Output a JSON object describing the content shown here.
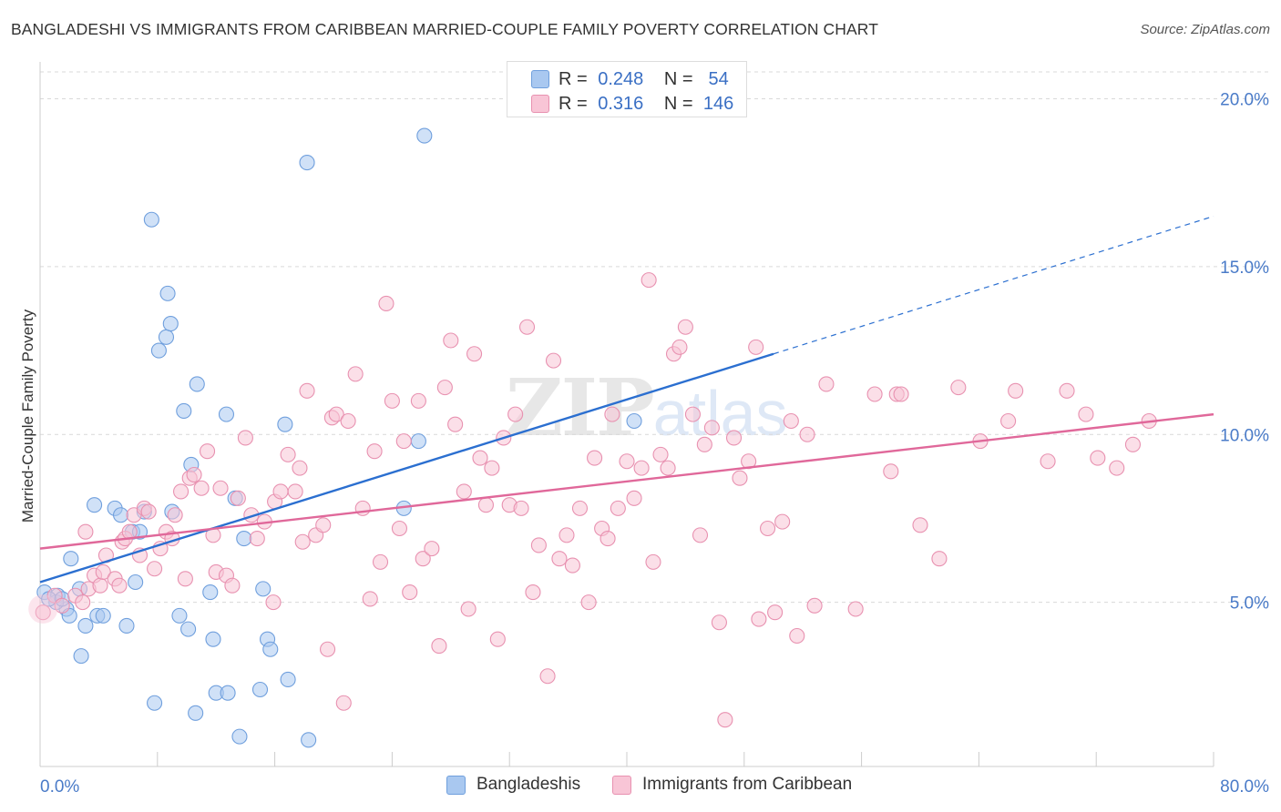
{
  "title": "BANGLADESHI VS IMMIGRANTS FROM CARIBBEAN MARRIED-COUPLE FAMILY POVERTY CORRELATION CHART",
  "source": "Source: ZipAtlas.com",
  "watermark": {
    "main": "ZIP",
    "sub": "atlas"
  },
  "legend_top": {
    "rows": [
      {
        "r_label": "R =",
        "r_value": "0.248",
        "n_label": "N =",
        "n_value": "54",
        "color": "#a9c8f0",
        "border": "#6f9fdd"
      },
      {
        "r_label": "R =",
        "r_value": "0.316",
        "n_label": "N =",
        "n_value": "146",
        "color": "#f8c5d6",
        "border": "#e891b0"
      }
    ]
  },
  "legend_bottom": [
    {
      "label": "Bangladeshis",
      "color": "#a9c8f0",
      "border": "#6f9fdd"
    },
    {
      "label": "Immigrants from Caribbean",
      "color": "#f8c5d6",
      "border": "#e891b0"
    }
  ],
  "chart_data": {
    "type": "scatter",
    "title": "BANGLADESHI VS IMMIGRANTS FROM CARIBBEAN MARRIED-COUPLE FAMILY POVERTY CORRELATION CHART",
    "xlabel": "",
    "ylabel": "Married-Couple Family Poverty",
    "xlim": [
      0,
      80
    ],
    "ylim": [
      0,
      20.8
    ],
    "x_tick_labels": [
      "0.0%",
      "80.0%"
    ],
    "y_ticks": [
      5,
      10,
      15,
      20
    ],
    "y_tick_labels": [
      "5.0%",
      "10.0%",
      "15.0%",
      "20.0%"
    ],
    "grid": "horizontal dashed",
    "legend_position": "top-center",
    "series": [
      {
        "name": "Bangladeshis",
        "color": "#6f9fdd",
        "fill": "#a9c8f0",
        "trend": {
          "x": [
            0,
            50
          ],
          "y": [
            5.6,
            12.4
          ],
          "dashed_extension": {
            "x": [
              50,
              80
            ],
            "y": [
              12.4,
              16.5
            ]
          },
          "color": "#2b6fd0"
        },
        "points": [
          [
            0.3,
            5.3
          ],
          [
            1.2,
            5.2
          ],
          [
            1.8,
            4.8
          ],
          [
            2.0,
            4.6
          ],
          [
            1.1,
            5.0
          ],
          [
            2.1,
            6.3
          ],
          [
            2.7,
            5.4
          ],
          [
            2.8,
            3.4
          ],
          [
            3.1,
            4.3
          ],
          [
            3.7,
            7.9
          ],
          [
            3.9,
            4.6
          ],
          [
            4.3,
            4.6
          ],
          [
            5.1,
            7.8
          ],
          [
            5.5,
            7.6
          ],
          [
            5.9,
            4.3
          ],
          [
            6.3,
            7.1
          ],
          [
            6.5,
            5.6
          ],
          [
            6.8,
            7.1
          ],
          [
            7.1,
            7.7
          ],
          [
            7.6,
            16.4
          ],
          [
            8.1,
            12.5
          ],
          [
            7.8,
            2.0
          ],
          [
            8.6,
            12.9
          ],
          [
            8.7,
            14.2
          ],
          [
            8.9,
            13.3
          ],
          [
            9.0,
            7.7
          ],
          [
            9.5,
            4.6
          ],
          [
            9.8,
            10.7
          ],
          [
            10.1,
            4.2
          ],
          [
            10.3,
            9.1
          ],
          [
            10.7,
            11.5
          ],
          [
            10.6,
            1.7
          ],
          [
            11.6,
            5.3
          ],
          [
            11.8,
            3.9
          ],
          [
            12.0,
            2.3
          ],
          [
            12.7,
            10.6
          ],
          [
            12.8,
            2.3
          ],
          [
            13.3,
            8.1
          ],
          [
            13.6,
            1.0
          ],
          [
            13.9,
            6.9
          ],
          [
            15.0,
            2.4
          ],
          [
            15.2,
            5.4
          ],
          [
            15.5,
            3.9
          ],
          [
            15.7,
            3.6
          ],
          [
            16.7,
            10.3
          ],
          [
            16.9,
            2.7
          ],
          [
            18.2,
            18.1
          ],
          [
            18.3,
            0.9
          ],
          [
            24.8,
            7.8
          ],
          [
            25.8,
            9.8
          ],
          [
            26.2,
            18.9
          ],
          [
            40.5,
            10.4
          ],
          [
            0.6,
            5.1
          ],
          [
            1.5,
            5.1
          ]
        ]
      },
      {
        "name": "Immigrants from Caribbean",
        "color": "#e891b0",
        "fill": "#f8c5d6",
        "trend": {
          "x": [
            0,
            80
          ],
          "y": [
            6.6,
            10.6
          ],
          "color": "#e0689a"
        },
        "points": [
          [
            0.2,
            4.7
          ],
          [
            1.0,
            5.2
          ],
          [
            1.5,
            4.9
          ],
          [
            2.4,
            5.2
          ],
          [
            2.9,
            5.0
          ],
          [
            3.1,
            7.1
          ],
          [
            3.3,
            5.4
          ],
          [
            3.7,
            5.8
          ],
          [
            4.1,
            5.5
          ],
          [
            4.3,
            5.9
          ],
          [
            4.5,
            6.4
          ],
          [
            5.1,
            5.7
          ],
          [
            5.4,
            5.5
          ],
          [
            5.6,
            6.8
          ],
          [
            5.8,
            6.9
          ],
          [
            6.1,
            7.1
          ],
          [
            6.4,
            7.6
          ],
          [
            6.8,
            6.4
          ],
          [
            7.1,
            7.8
          ],
          [
            7.4,
            7.7
          ],
          [
            7.8,
            6.0
          ],
          [
            8.2,
            6.6
          ],
          [
            8.6,
            7.1
          ],
          [
            9.0,
            6.9
          ],
          [
            9.2,
            7.6
          ],
          [
            9.6,
            8.3
          ],
          [
            9.9,
            5.7
          ],
          [
            10.2,
            8.7
          ],
          [
            10.5,
            8.8
          ],
          [
            11.0,
            8.4
          ],
          [
            11.4,
            9.5
          ],
          [
            11.8,
            7.0
          ],
          [
            12.0,
            5.9
          ],
          [
            12.3,
            8.4
          ],
          [
            12.7,
            5.8
          ],
          [
            13.1,
            5.5
          ],
          [
            13.5,
            8.1
          ],
          [
            14.0,
            9.9
          ],
          [
            14.4,
            7.6
          ],
          [
            14.8,
            6.9
          ],
          [
            15.3,
            7.4
          ],
          [
            15.9,
            5.0
          ],
          [
            16.0,
            8.0
          ],
          [
            16.4,
            8.3
          ],
          [
            16.9,
            9.4
          ],
          [
            17.4,
            8.3
          ],
          [
            17.7,
            9.0
          ],
          [
            17.9,
            6.8
          ],
          [
            18.2,
            11.3
          ],
          [
            18.8,
            7.0
          ],
          [
            19.3,
            7.3
          ],
          [
            19.6,
            3.6
          ],
          [
            19.9,
            10.5
          ],
          [
            20.2,
            10.6
          ],
          [
            20.7,
            2.0
          ],
          [
            21.0,
            10.4
          ],
          [
            21.5,
            11.8
          ],
          [
            22.0,
            7.8
          ],
          [
            22.5,
            5.1
          ],
          [
            22.8,
            9.5
          ],
          [
            23.2,
            6.2
          ],
          [
            23.6,
            13.9
          ],
          [
            24.0,
            11.0
          ],
          [
            24.5,
            7.2
          ],
          [
            24.8,
            9.8
          ],
          [
            25.2,
            5.3
          ],
          [
            25.8,
            11.0
          ],
          [
            26.1,
            6.3
          ],
          [
            26.7,
            6.6
          ],
          [
            27.2,
            3.7
          ],
          [
            27.6,
            11.4
          ],
          [
            28.0,
            12.8
          ],
          [
            28.3,
            10.3
          ],
          [
            28.9,
            8.3
          ],
          [
            29.2,
            4.8
          ],
          [
            29.6,
            12.4
          ],
          [
            30.0,
            9.3
          ],
          [
            30.4,
            7.9
          ],
          [
            30.8,
            9.0
          ],
          [
            31.2,
            3.9
          ],
          [
            31.6,
            9.9
          ],
          [
            32.0,
            7.9
          ],
          [
            32.4,
            10.6
          ],
          [
            32.8,
            7.8
          ],
          [
            33.2,
            13.2
          ],
          [
            33.6,
            5.3
          ],
          [
            34.0,
            6.7
          ],
          [
            34.6,
            2.8
          ],
          [
            35.0,
            12.2
          ],
          [
            35.4,
            6.3
          ],
          [
            35.9,
            7.0
          ],
          [
            36.3,
            6.1
          ],
          [
            36.8,
            7.8
          ],
          [
            37.4,
            5.0
          ],
          [
            37.8,
            9.3
          ],
          [
            38.3,
            7.2
          ],
          [
            38.7,
            6.9
          ],
          [
            39.0,
            10.6
          ],
          [
            39.4,
            7.8
          ],
          [
            40.0,
            9.2
          ],
          [
            40.5,
            8.1
          ],
          [
            41.0,
            9.0
          ],
          [
            41.5,
            14.6
          ],
          [
            41.8,
            6.2
          ],
          [
            42.3,
            9.4
          ],
          [
            42.8,
            9.0
          ],
          [
            43.2,
            12.4
          ],
          [
            43.6,
            12.6
          ],
          [
            44.0,
            13.2
          ],
          [
            44.5,
            10.6
          ],
          [
            45.0,
            7.0
          ],
          [
            45.3,
            9.7
          ],
          [
            45.8,
            10.2
          ],
          [
            46.3,
            4.4
          ],
          [
            46.7,
            1.5
          ],
          [
            47.3,
            9.9
          ],
          [
            47.7,
            8.7
          ],
          [
            48.3,
            9.2
          ],
          [
            48.8,
            12.6
          ],
          [
            49.0,
            4.5
          ],
          [
            49.6,
            7.2
          ],
          [
            50.1,
            4.7
          ],
          [
            50.6,
            7.4
          ],
          [
            51.2,
            10.4
          ],
          [
            51.6,
            4.0
          ],
          [
            52.3,
            10.0
          ],
          [
            52.8,
            4.9
          ],
          [
            53.6,
            11.5
          ],
          [
            55.6,
            4.8
          ],
          [
            56.9,
            11.2
          ],
          [
            58.0,
            8.9
          ],
          [
            58.4,
            11.2
          ],
          [
            58.7,
            11.2
          ],
          [
            60.0,
            7.3
          ],
          [
            61.3,
            6.3
          ],
          [
            62.6,
            11.4
          ],
          [
            64.1,
            9.8
          ],
          [
            66.0,
            10.4
          ],
          [
            66.5,
            11.3
          ],
          [
            68.7,
            9.2
          ],
          [
            70.0,
            11.3
          ],
          [
            71.3,
            10.6
          ],
          [
            72.1,
            9.3
          ],
          [
            73.4,
            9.0
          ],
          [
            74.5,
            9.7
          ],
          [
            75.6,
            10.4
          ]
        ]
      }
    ]
  }
}
